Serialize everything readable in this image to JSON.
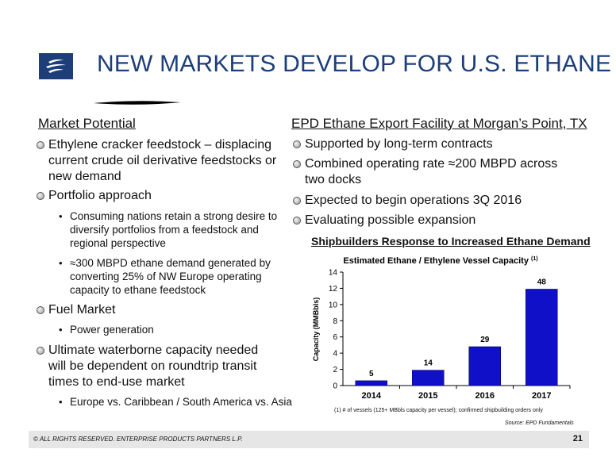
{
  "slide": {
    "title": "NEW MARKETS DEVELOP FOR U.S. ETHANE"
  },
  "left": {
    "heading": "Market Potential",
    "items": [
      {
        "text": "Ethylene cracker feedstock – displacing current crude oil derivative feedstocks or new demand"
      },
      {
        "text": "Portfolio approach"
      },
      {
        "text": "Consuming nations retain a strong desire to diversify portfolios from a feedstock and regional perspective"
      },
      {
        "text": "≈300 MBPD ethane demand generated by converting 25% of NW Europe operating capacity to ethane feedstock"
      },
      {
        "text": "Fuel Market"
      },
      {
        "text": "Power generation"
      },
      {
        "text": "Ultimate waterborne capacity needed will be dependent on roundtrip transit times to end-use market"
      },
      {
        "text": "Europe vs. Caribbean / South America vs. Asia"
      }
    ]
  },
  "right": {
    "heading": "EPD Ethane Export Facility at Morgan’s Point, TX",
    "items": [
      {
        "text": "Supported by long-term contracts"
      },
      {
        "text": "Combined operating rate ≈200 MBPD across two docks"
      },
      {
        "text": "Expected to begin operations 3Q 2016"
      },
      {
        "text": "Evaluating possible expansion"
      }
    ]
  },
  "chart_section": {
    "heading": "Shipbuilders Response to Increased Ethane Demand",
    "footnote": "(1) # of vessels (125+ MBbls capacity per vessel); confirmed shipbuilding orders only",
    "source": "Source:  EPD Fundamentals"
  },
  "chart_data": {
    "type": "bar",
    "title": "Estimated Ethane / Ethylene Vessel Capacity (1)",
    "categories": [
      "2014",
      "2015",
      "2016",
      "2017"
    ],
    "values": [
      0.6,
      1.9,
      4.8,
      11.9
    ],
    "data_labels": [
      "5",
      "14",
      "29",
      "48"
    ],
    "ylabel": "Capacity (MMBbls)",
    "ylim": [
      0,
      14
    ],
    "yticks": [
      0,
      2,
      4,
      6,
      8,
      10,
      12,
      14
    ],
    "grid": false,
    "bar_color": "#1010c8"
  },
  "footer": {
    "copyright": "© ALL RIGHTS RESERVED. ENTERPRISE PRODUCTS PARTNERS L.P.",
    "page_number": "21"
  },
  "colors": {
    "title": "#1d3e78",
    "logo_bg": "#1d3e78",
    "footer_bg": "#e6e6e6"
  }
}
